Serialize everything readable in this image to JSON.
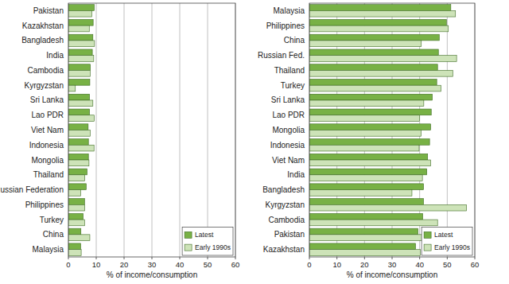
{
  "chart_data": [
    {
      "type": "bar",
      "orientation": "horizontal",
      "xlabel": "% of income/consumption",
      "categories": [
        "Pakistan",
        "Kazakhstan",
        "Bangladesh",
        "India",
        "Cambodia",
        "Kyrgyzstan",
        "Sri Lanka",
        "Lao PDR",
        "Viet Nam",
        "Indonesia",
        "Mongolia",
        "Thailand",
        "Russian Federation",
        "Philippines",
        "Turkey",
        "China",
        "Malaysia"
      ],
      "series": [
        {
          "name": "Latest",
          "color": "#78b145",
          "values": [
            9.3,
            8.9,
            8.8,
            8.6,
            7.9,
            7.7,
            7.6,
            7.6,
            7.1,
            7.2,
            7.2,
            6.7,
            6.4,
            5.8,
            5.3,
            4.5,
            4.4
          ]
        },
        {
          "name": "Early 1990s",
          "color": "#cde3b8",
          "values": [
            8.4,
            7.5,
            9.4,
            9.1,
            7.8,
            2.5,
            8.8,
            9.3,
            7.8,
            9.2,
            7.4,
            5.9,
            4.4,
            5.9,
            5.8,
            7.7,
            4.6
          ]
        }
      ],
      "xlim": [
        0,
        60
      ],
      "xticks": [
        0,
        10,
        20,
        30,
        40,
        50,
        60
      ],
      "grid": true,
      "legend": "bottom-right"
    },
    {
      "type": "bar",
      "orientation": "horizontal",
      "xlabel": "% of income/consumption",
      "categories": [
        "Malaysia",
        "Philippines",
        "China",
        "Russian Fed.",
        "Thailand",
        "Turkey",
        "Sri Lanka",
        "Lao PDR",
        "Mongolia",
        "Indonesia",
        "Viet Nam",
        "India",
        "Bangladesh",
        "Kyrgyzstan",
        "Cambodia",
        "Pakistan",
        "Kazakhstan"
      ],
      "series": [
        {
          "name": "Latest",
          "color": "#78b145",
          "values": [
            51.3,
            49.7,
            47.1,
            46.8,
            46.5,
            46.2,
            44.6,
            44.2,
            44.0,
            43.6,
            42.9,
            42.6,
            41.4,
            41.4,
            41.1,
            39.4,
            38.5
          ]
        },
        {
          "name": "Early 1990s",
          "color": "#cde3b8",
          "values": [
            53.0,
            50.4,
            40.6,
            53.4,
            52.0,
            47.7,
            41.5,
            40.0,
            40.5,
            39.8,
            44.0,
            41.0,
            37.2,
            57.0,
            46.5,
            42.0,
            40.2
          ]
        }
      ],
      "xlim": [
        0,
        60
      ],
      "xticks": [
        0,
        10,
        20,
        30,
        40,
        50,
        60
      ],
      "grid": true,
      "legend": "bottom-right"
    }
  ]
}
